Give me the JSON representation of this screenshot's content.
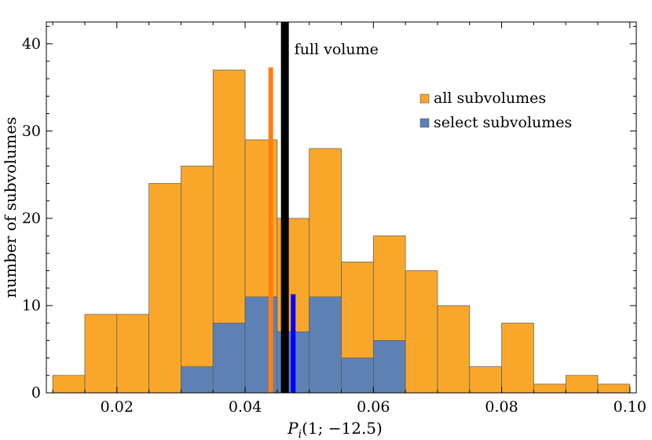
{
  "chart_data": {
    "type": "bar",
    "title": "",
    "xlabel": "P_i(1; −12.5)",
    "xlabel_parts": {
      "main": "P",
      "sub": "i",
      "rest": "(1; −12.5)"
    },
    "ylabel": "number of subvolumes",
    "xlim": [
      0.009,
      0.101
    ],
    "ylim": [
      0,
      42.5
    ],
    "xticks": [
      0.02,
      0.04,
      0.06,
      0.08,
      0.1
    ],
    "xtick_labels": [
      "0.02",
      "0.04",
      "0.06",
      "0.08",
      "0.10"
    ],
    "yticks": [
      0,
      10,
      20,
      30,
      40
    ],
    "ytick_labels": [
      "0",
      "10",
      "20",
      "30",
      "40"
    ],
    "bin_width": 0.005,
    "series": [
      {
        "name": "all subvolumes",
        "color": "#F9A72B",
        "bins": [
          {
            "x0": 0.01,
            "x1": 0.015,
            "count": 2
          },
          {
            "x0": 0.015,
            "x1": 0.02,
            "count": 9
          },
          {
            "x0": 0.02,
            "x1": 0.025,
            "count": 9
          },
          {
            "x0": 0.025,
            "x1": 0.03,
            "count": 24
          },
          {
            "x0": 0.03,
            "x1": 0.035,
            "count": 26
          },
          {
            "x0": 0.035,
            "x1": 0.04,
            "count": 37
          },
          {
            "x0": 0.04,
            "x1": 0.045,
            "count": 29
          },
          {
            "x0": 0.045,
            "x1": 0.05,
            "count": 20
          },
          {
            "x0": 0.05,
            "x1": 0.055,
            "count": 28
          },
          {
            "x0": 0.055,
            "x1": 0.06,
            "count": 15
          },
          {
            "x0": 0.06,
            "x1": 0.065,
            "count": 18
          },
          {
            "x0": 0.065,
            "x1": 0.07,
            "count": 14
          },
          {
            "x0": 0.07,
            "x1": 0.075,
            "count": 10
          },
          {
            "x0": 0.075,
            "x1": 0.08,
            "count": 3
          },
          {
            "x0": 0.08,
            "x1": 0.085,
            "count": 8
          },
          {
            "x0": 0.085,
            "x1": 0.09,
            "count": 1
          },
          {
            "x0": 0.09,
            "x1": 0.095,
            "count": 2
          },
          {
            "x0": 0.095,
            "x1": 0.1,
            "count": 1
          }
        ]
      },
      {
        "name": "select subvolumes",
        "color": "#5E81B5",
        "bins": [
          {
            "x0": 0.03,
            "x1": 0.035,
            "count": 3
          },
          {
            "x0": 0.035,
            "x1": 0.04,
            "count": 8
          },
          {
            "x0": 0.04,
            "x1": 0.045,
            "count": 11
          },
          {
            "x0": 0.045,
            "x1": 0.05,
            "count": 7
          },
          {
            "x0": 0.05,
            "x1": 0.055,
            "count": 11
          },
          {
            "x0": 0.055,
            "x1": 0.06,
            "count": 4
          },
          {
            "x0": 0.06,
            "x1": 0.065,
            "count": 6
          }
        ]
      }
    ],
    "vlines": [
      {
        "x": 0.044,
        "height": 37.3,
        "color": "#FF7F0E",
        "label": ""
      },
      {
        "x": 0.0462,
        "height": 42.5,
        "color": "#000000",
        "label": "full volume"
      },
      {
        "x": 0.0475,
        "height": 11.3,
        "color": "#0000FF",
        "label": ""
      }
    ],
    "legend_position": "top-right",
    "grid": false
  }
}
